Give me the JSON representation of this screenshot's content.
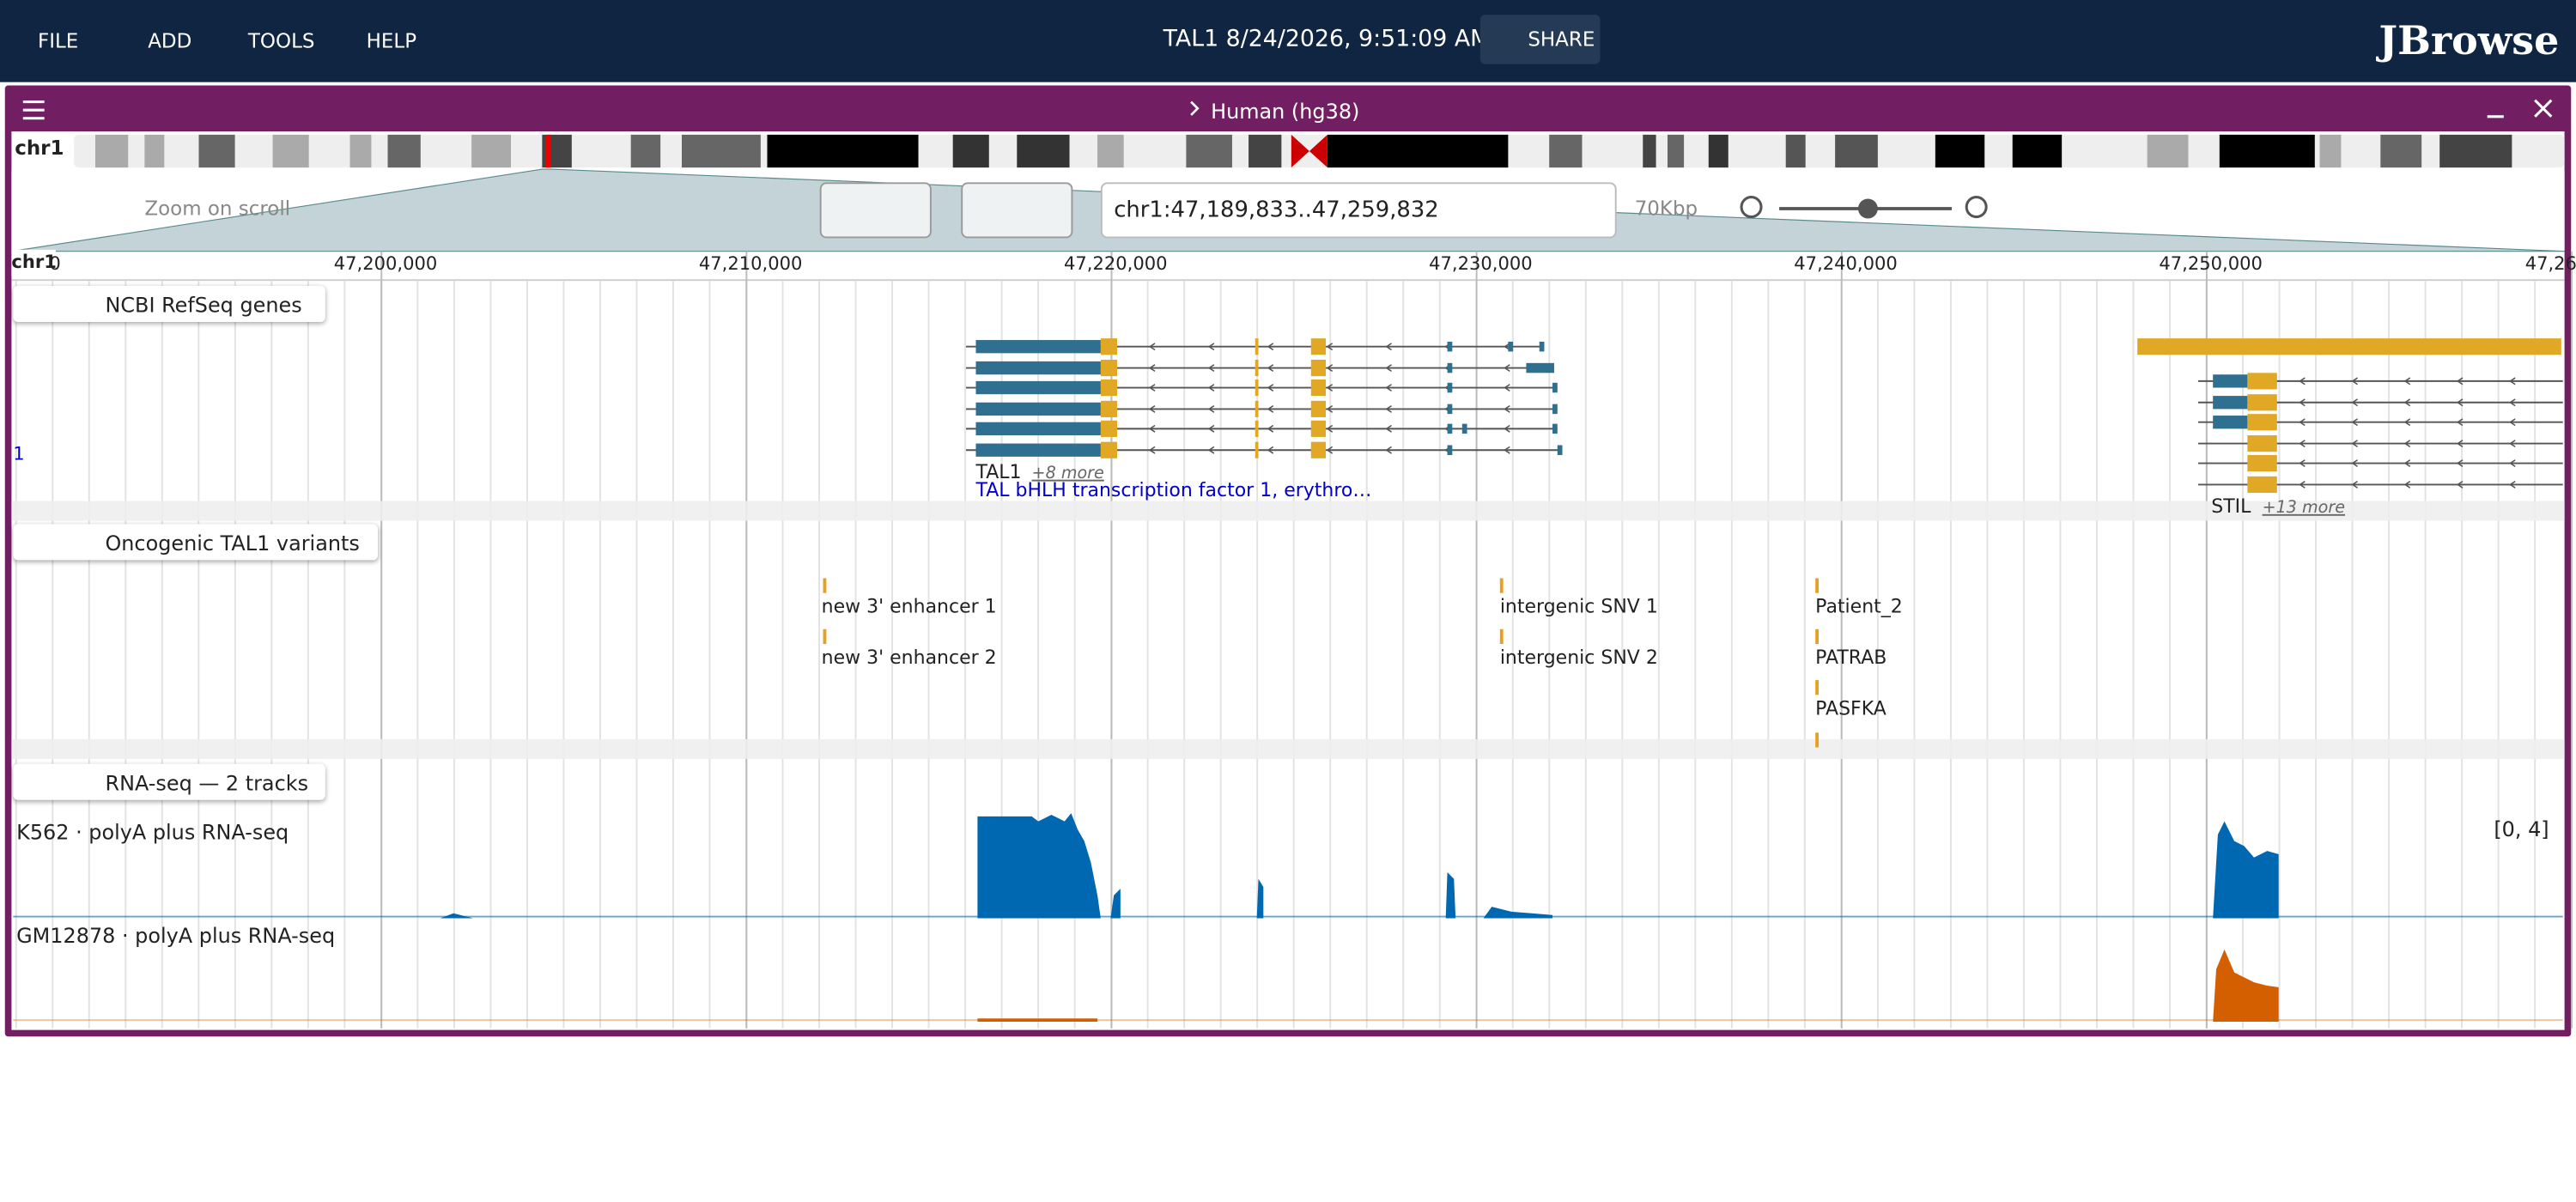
{
  "menu": [
    "FILE",
    "ADD",
    "TOOLS",
    "HELP"
  ],
  "session_title": "TAL1 8/24/2026, 9:51:09 AM",
  "share": "SHARE",
  "logo": "JBrowse",
  "view": {
    "assembly": "Human (hg38)",
    "chromosome": "chr1",
    "zoom_on_scroll": "Zoom on scroll",
    "location": "chr1:47,189,833..47,259,832",
    "span": "70Kbp",
    "ruler": {
      "ref": "chr1",
      "ticks": [
        "0",
        "47,200,000",
        "47,210,000",
        "47,220,000",
        "47,230,000",
        "47,240,000",
        "47,250,000",
        "47,26"
      ]
    }
  },
  "tracks": [
    {
      "name": "NCBI RefSeq genes",
      "edge_label": "1",
      "features": [
        {
          "label": "TAL1",
          "more": "+8 more",
          "description": "TAL bHLH transcription factor 1, erythro…"
        },
        {
          "label": "STIL",
          "more": "+13 more"
        }
      ]
    },
    {
      "name": "Oncogenic TAL1 variants",
      "features": [
        "new 3' enhancer 1",
        "new 3' enhancer 2",
        "intergenic SNV 1",
        "intergenic SNV 2",
        "Patient_2",
        "PATRAB",
        "PASFKA"
      ]
    },
    {
      "name": "RNA-seq — 2 tracks",
      "scale": "[0, 4]",
      "subtracks": [
        {
          "name": "K562 · polyA plus RNA-seq",
          "color": "#0068b0"
        },
        {
          "name": "GM12878 · polyA plus RNA-seq",
          "color": "#d45f00"
        }
      ]
    }
  ]
}
